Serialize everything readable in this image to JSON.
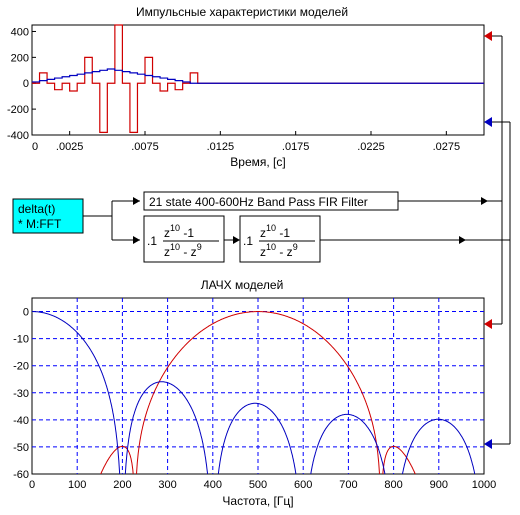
{
  "blocks": {
    "source": {
      "line1": "delta(t)",
      "line2": "* M:FFT",
      "color": "#00ffff"
    },
    "fir": {
      "label": "21 state 400-600Hz Band Pass FIR Filter"
    },
    "tf": {
      "gain": ".1",
      "num": "z",
      "num_exp": "10",
      "num_tail": " -1",
      "den": "z",
      "den_exp": "10",
      "den_mid": " - z",
      "den_exp2": "9"
    }
  },
  "colors": {
    "red": "#d00000",
    "blue": "#0000c0",
    "grid": "#0000ff",
    "cyan": "#00ffff"
  },
  "chart_data": [
    {
      "type": "line",
      "title": "Импульсные характеристики моделей",
      "xlabel": "Время, [с]",
      "ylabel": "",
      "xlim": [
        0,
        0.03
      ],
      "ylim": [
        -400,
        450
      ],
      "xticks": [
        0,
        0.0025,
        0.0075,
        0.0125,
        0.0175,
        0.0225,
        0.0275
      ],
      "xtick_labels": [
        "0",
        ".0025",
        ".0075",
        ".0125",
        ".0175",
        ".0225",
        ".0275"
      ],
      "yticks": [
        -400,
        -200,
        0,
        200,
        400
      ],
      "ytick_labels": [
        "-400",
        "-200",
        "0",
        "200",
        "400"
      ],
      "grid": false,
      "series": [
        {
          "color": "red",
          "style": "step",
          "x": [
            0,
            0.0005,
            0.001,
            0.0015,
            0.002,
            0.0025,
            0.003,
            0.0035,
            0.004,
            0.0045,
            0.005,
            0.0055,
            0.006,
            0.0065,
            0.007,
            0.0075,
            0.008,
            0.0085,
            0.009,
            0.0095,
            0.01,
            0.0105,
            0.011
          ],
          "values": [
            0,
            80,
            0,
            -50,
            0,
            -60,
            0,
            200,
            0,
            -380,
            0,
            450,
            0,
            -380,
            0,
            200,
            0,
            -60,
            0,
            -50,
            0,
            80,
            0
          ]
        },
        {
          "color": "blue",
          "style": "step",
          "x": [
            0,
            0.0005,
            0.001,
            0.0015,
            0.002,
            0.0025,
            0.003,
            0.0035,
            0.004,
            0.0045,
            0.005,
            0.0055,
            0.006,
            0.0065,
            0.007,
            0.0075,
            0.008,
            0.0085,
            0.009,
            0.0095,
            0.01,
            0.0105,
            0.011
          ],
          "values": [
            10,
            20,
            30,
            40,
            50,
            60,
            70,
            80,
            90,
            100,
            110,
            100,
            90,
            80,
            70,
            60,
            50,
            40,
            30,
            20,
            10,
            0,
            0
          ]
        }
      ]
    },
    {
      "type": "line",
      "title": "ЛАЧХ моделей",
      "xlabel": "Частота, [Гц]",
      "ylabel": "",
      "xlim": [
        0,
        1000
      ],
      "ylim": [
        -60,
        5
      ],
      "xticks": [
        0,
        100,
        200,
        300,
        400,
        500,
        600,
        700,
        800,
        900,
        1000
      ],
      "xtick_labels": [
        "0",
        "100",
        "200",
        "300",
        "400",
        "500",
        "600",
        "700",
        "800",
        "900",
        "1000"
      ],
      "yticks": [
        -60,
        -50,
        -40,
        -30,
        -20,
        -10,
        0
      ],
      "ytick_labels": [
        "-60",
        "-50",
        "-40",
        "-30",
        "-20",
        "-10",
        "0"
      ],
      "grid": true,
      "series": [
        {
          "color": "red",
          "style": "fir",
          "fs": 2000,
          "taps": 21,
          "band": [
            400,
            600
          ]
        },
        {
          "color": "blue",
          "style": "comb",
          "fs": 2000,
          "N": 10
        }
      ]
    }
  ]
}
